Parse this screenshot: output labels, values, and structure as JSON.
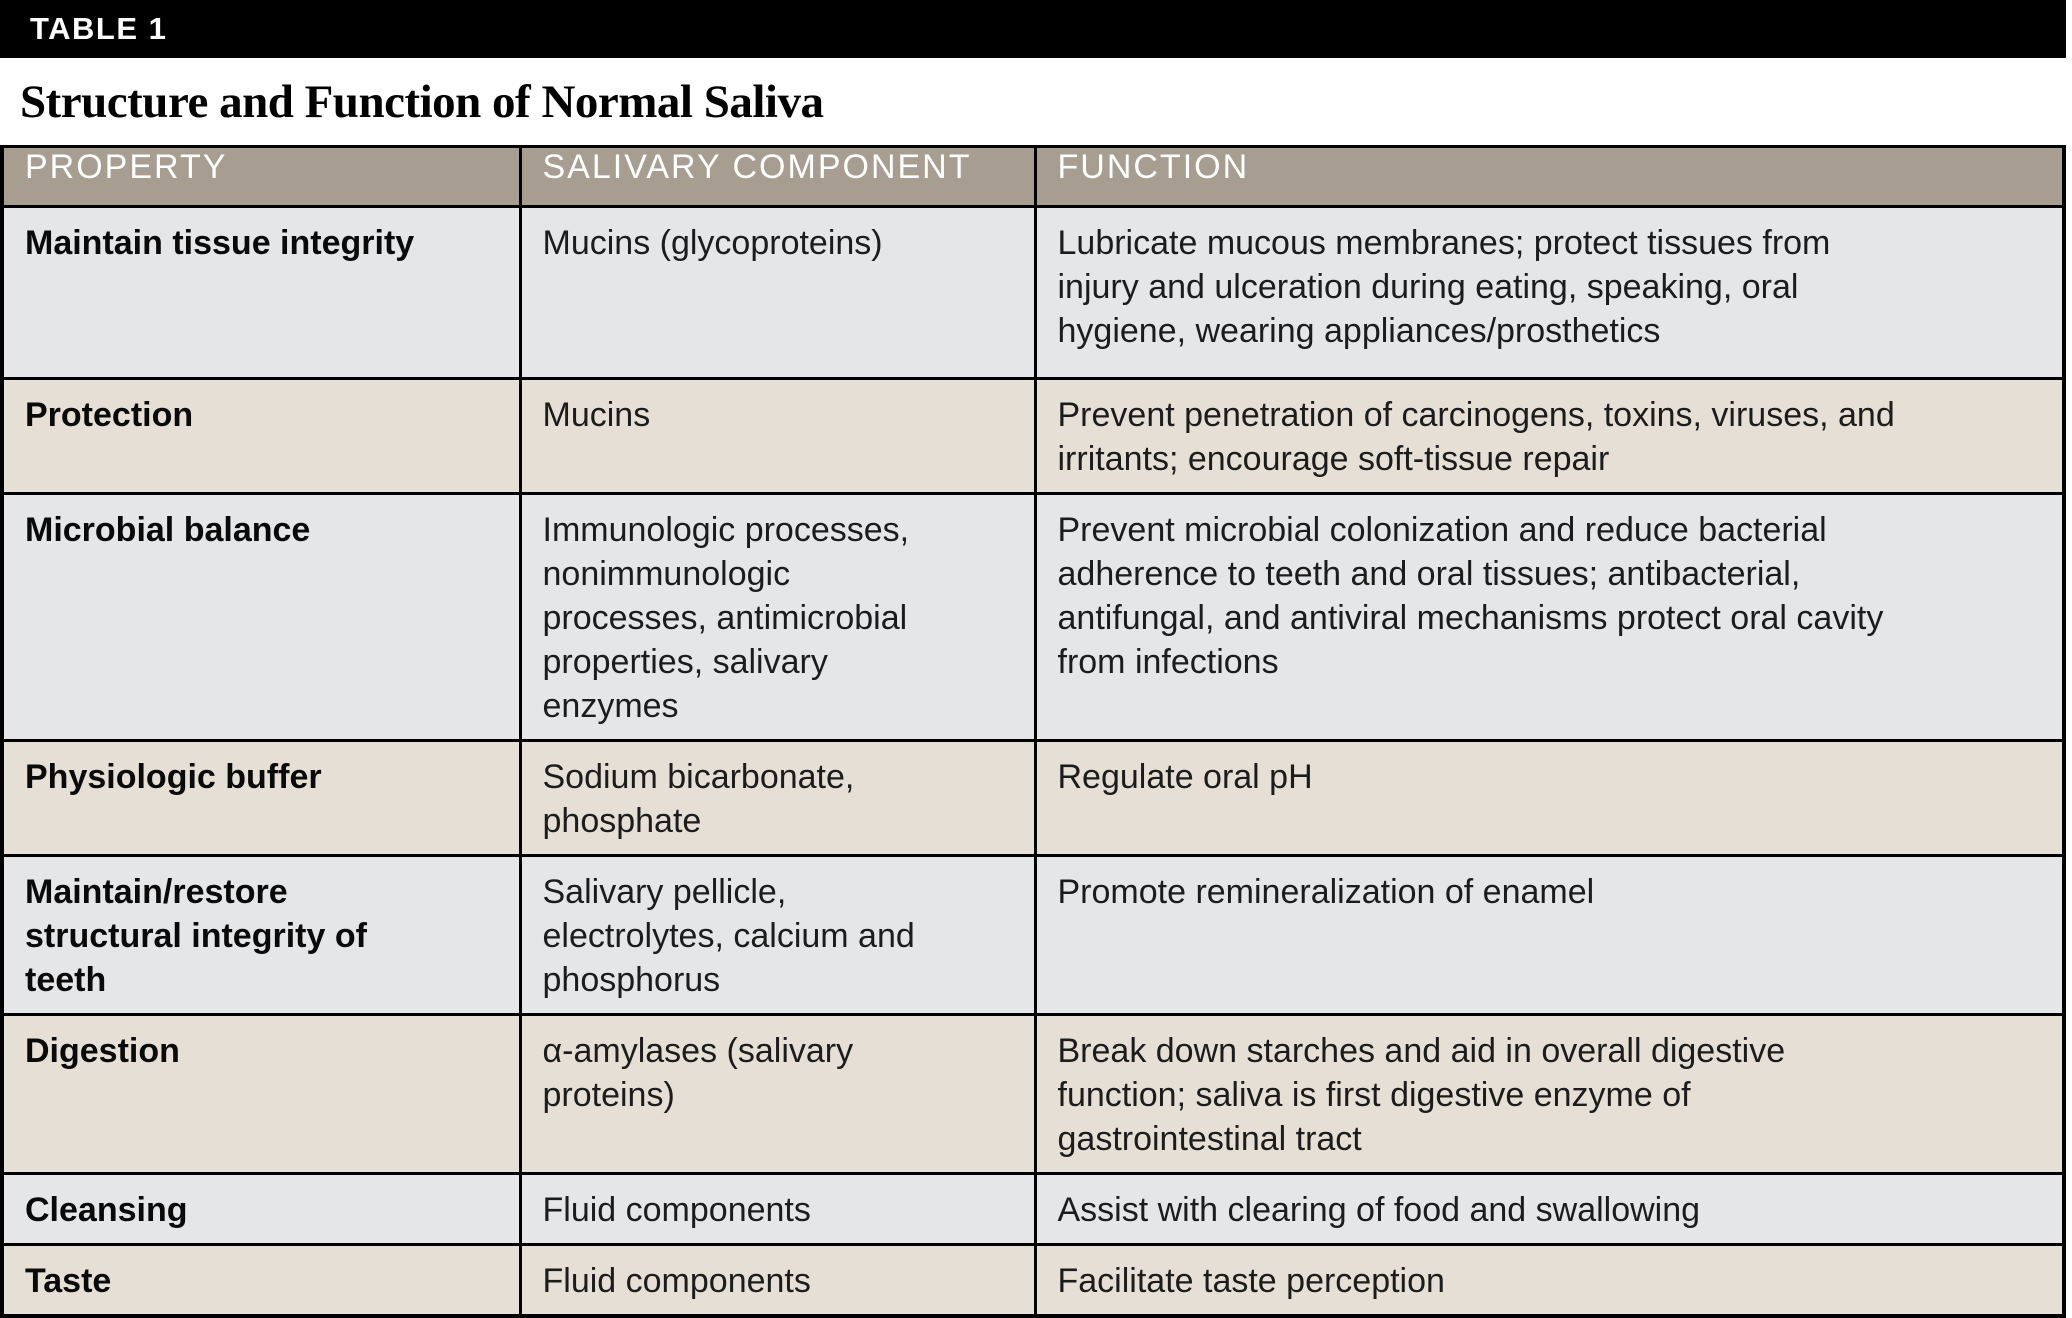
{
  "panel": {
    "bar_label": "TABLE 1",
    "title": "Structure and Function of Normal Saliva"
  },
  "table": {
    "columns": [
      "PROPERTY",
      "SALIVARY COMPONENT",
      "FUNCTION"
    ],
    "rows": [
      {
        "property": "Maintain tissue integrity",
        "component": "Mucins (glycoproteins)",
        "function": "Lubricate mucous membranes; protect tissues from\ninjury and ulceration during eating, speaking, oral\nhygiene, wearing appliances/prosthetics"
      },
      {
        "property": "Protection",
        "component": "Mucins",
        "function": "Prevent penetration of carcinogens, toxins, viruses, and\nirritants; encourage soft-tissue repair"
      },
      {
        "property": "Microbial balance",
        "component": "Immunologic processes,\nnonimmunologic\nprocesses, antimicrobial\nproperties, salivary\nenzymes",
        "function": "Prevent microbial colonization and reduce bacterial\nadherence to teeth and oral tissues; antibacterial,\nantifungal, and antiviral mechanisms protect oral cavity\nfrom infections"
      },
      {
        "property": "Physiologic buffer",
        "component": "Sodium bicarbonate,\nphosphate",
        "function": "Regulate oral pH"
      },
      {
        "property": "Maintain/restore\nstructural integrity of\nteeth",
        "component": "Salivary pellicle,\nelectrolytes, calcium and\nphosphorus",
        "function": "Promote remineralization of enamel"
      },
      {
        "property": "Digestion",
        "component": "α-amylases (salivary\nproteins)",
        "function": "Break down starches and aid in overall digestive\nfunction; saliva is first digestive enzyme of\ngastrointestinal tract"
      },
      {
        "property": "Cleansing",
        "component": "Fluid components",
        "function": "Assist with clearing of food and swallowing"
      },
      {
        "property": "Taste",
        "component": "Fluid components",
        "function": "Facilitate taste perception"
      }
    ]
  },
  "colors": {
    "bar_background": "#000000",
    "bar_text": "#ffffff",
    "header_background": "#a79d91",
    "header_text": "#ffffff",
    "row_gray": "#e5e6e8",
    "row_beige": "#e6dfd5",
    "grid_border": "#000000",
    "body_text": "#1c1c1c"
  }
}
